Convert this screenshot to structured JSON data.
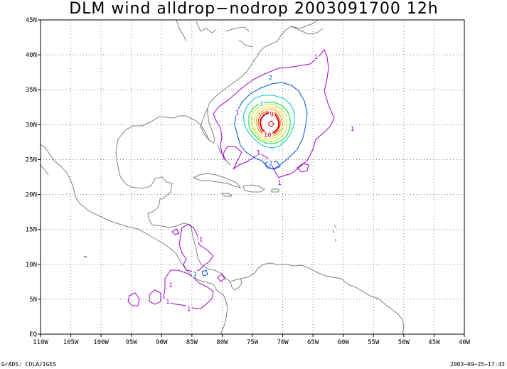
{
  "title": "DLM wind alldrop−nodrop 2003091700 12h",
  "footer_left": "GrADS: COLA/IGES",
  "footer_right": "2003−09−25−17:43",
  "x_ticks": [
    "110W",
    "105W",
    "100W",
    "95W",
    "90W",
    "85W",
    "80W",
    "75W",
    "70W",
    "65W",
    "60W",
    "55W",
    "50W",
    "45W",
    "40W"
  ],
  "y_ticks": [
    "EQ",
    "5N",
    "10N",
    "15N",
    "20N",
    "25N",
    "30N",
    "35N",
    "40N",
    "45N"
  ],
  "contour_labels": [
    {
      "text": "1",
      "lon": -64.5,
      "lat": 39.5,
      "color": "#a000c8"
    },
    {
      "text": "2",
      "lon": -72,
      "lat": 36.5,
      "color": "#0050dc"
    },
    {
      "text": "3",
      "lon": -73.5,
      "lat": 32.8,
      "color": "#00c8c8"
    },
    {
      "text": "9",
      "lon": -71.8,
      "lat": 31.3,
      "color": "#dc0000"
    },
    {
      "text": "10",
      "lon": -72.5,
      "lat": 28.3,
      "color": "#dc0000"
    },
    {
      "text": "1",
      "lon": -77.5,
      "lat": 31.5,
      "color": "#a000c8"
    },
    {
      "text": "1",
      "lon": -58.5,
      "lat": 29.2,
      "color": "#a000c8"
    },
    {
      "text": "1",
      "lon": -74,
      "lat": 25.8,
      "color": "#a000c8"
    },
    {
      "text": "2",
      "lon": -72,
      "lat": 24.3,
      "color": "#0050dc"
    },
    {
      "text": "1",
      "lon": -70.5,
      "lat": 21.5,
      "color": "#a000c8"
    },
    {
      "text": "1",
      "lon": -83.5,
      "lat": 13.4,
      "color": "#a000c8"
    },
    {
      "text": "1",
      "lon": -88.5,
      "lat": 6.8,
      "color": "#a000c8"
    },
    {
      "text": "1",
      "lon": -89,
      "lat": 4.5,
      "color": "#a000c8"
    },
    {
      "text": "1",
      "lon": -85.5,
      "lat": 3.4,
      "color": "#a000c8"
    },
    {
      "text": "1",
      "lon": -84.5,
      "lat": 8.4,
      "color": "#0050dc"
    }
  ],
  "colors": {
    "coast": "#808080",
    "grid": "#888888",
    "c1": "#a000c8",
    "c2": "#0050dc",
    "c3": "#00c8c8",
    "c4": "#00dc00",
    "c5": "#a0e632",
    "c6": "#e6dc32",
    "c7": "#f0a000",
    "c8": "#fa3c00",
    "c9": "#dc0000"
  }
}
